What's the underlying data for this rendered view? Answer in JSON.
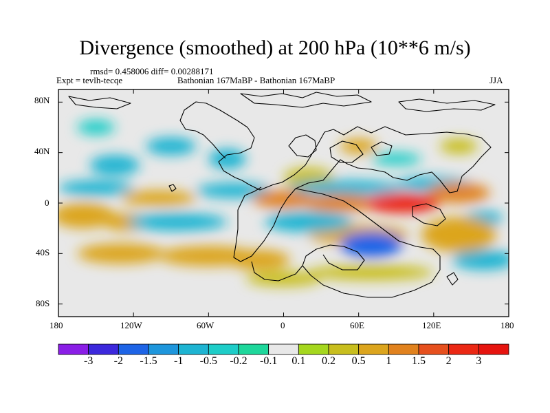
{
  "title": "Divergence (smoothed) at 200 hPa (10**6 m/s)",
  "stats": "rmsd= 0.458006 diff= 0.00288171",
  "expt": "Expt = tevlh-tecqe",
  "comparison": "Bathonian 167MaBP - Bathonian 167MaBP",
  "season": "JJA",
  "lat_ticks": [
    "80N",
    "40N",
    "0",
    "40S",
    "80S"
  ],
  "lon_ticks": [
    "180",
    "120W",
    "60W",
    "0",
    "60E",
    "120E",
    "180"
  ],
  "colorbar": {
    "labels": [
      "-3",
      "-2",
      "-1.5",
      "-1",
      "-0.5",
      "-0.2",
      "-0.1",
      "0.1",
      "0.2",
      "0.5",
      "1",
      "1.5",
      "2",
      "3"
    ],
    "colors": [
      "#8a1ee6",
      "#3c28dc",
      "#1e64e6",
      "#1e96dc",
      "#1eb4d2",
      "#1ecdc8",
      "#1ed79b",
      "#e8e8e8",
      "#a5d71e",
      "#c8be1e",
      "#dca51e",
      "#e1821e",
      "#e6501e",
      "#eb2814",
      "#e6140f"
    ]
  },
  "chart_data": {
    "type": "heatmap",
    "variable": "200 hPa divergence (smoothed) difference",
    "units": "10**6 m/s",
    "x_range": [
      -180,
      180
    ],
    "y_range": [
      -90,
      90
    ],
    "levels": [
      -3,
      -2,
      -1.5,
      -1,
      -0.5,
      -0.2,
      -0.1,
      0.1,
      0.2,
      0.5,
      1,
      1.5,
      2,
      3
    ],
    "features": [
      {
        "lon": 95,
        "lat": 0,
        "value": 2.5,
        "w": 30,
        "h": 8
      },
      {
        "lon": 45,
        "lat": 0,
        "value": 1.4,
        "w": 30,
        "h": 7
      },
      {
        "lon": 0,
        "lat": 3,
        "value": 1.2,
        "w": 25,
        "h": 7
      },
      {
        "lon": 140,
        "lat": 8,
        "value": 1.2,
        "w": 25,
        "h": 8
      },
      {
        "lon": -100,
        "lat": 4,
        "value": 0.9,
        "w": 30,
        "h": 6
      },
      {
        "lon": -160,
        "lat": -10,
        "value": 0.7,
        "w": 25,
        "h": 10
      },
      {
        "lon": -125,
        "lat": -15,
        "value": 0.9,
        "w": 20,
        "h": 7
      },
      {
        "lon": 60,
        "lat": -25,
        "value": 0.8,
        "w": 40,
        "h": 8
      },
      {
        "lon": 140,
        "lat": -25,
        "value": 0.9,
        "w": 30,
        "h": 14
      },
      {
        "lon": -60,
        "lat": -42,
        "value": 0.8,
        "w": 40,
        "h": 8
      },
      {
        "lon": -130,
        "lat": -40,
        "value": 0.7,
        "w": 35,
        "h": 8
      },
      {
        "lon": -20,
        "lat": -45,
        "value": 0.6,
        "w": 25,
        "h": 8
      },
      {
        "lon": 20,
        "lat": 20,
        "value": 0.4,
        "w": 20,
        "h": 8
      },
      {
        "lon": 60,
        "lat": 45,
        "value": 0.5,
        "w": 15,
        "h": 6
      },
      {
        "lon": 140,
        "lat": 45,
        "value": 0.4,
        "w": 15,
        "h": 6
      },
      {
        "lon": 70,
        "lat": -55,
        "value": 0.4,
        "w": 50,
        "h": 6
      },
      {
        "lon": 50,
        "lat": 12,
        "value": -1.0,
        "w": 45,
        "h": 6
      },
      {
        "lon": -40,
        "lat": 10,
        "value": -0.8,
        "w": 30,
        "h": 6
      },
      {
        "lon": -150,
        "lat": 12,
        "value": -0.7,
        "w": 30,
        "h": 6
      },
      {
        "lon": 120,
        "lat": 15,
        "value": -0.9,
        "w": 30,
        "h": 6
      },
      {
        "lon": 70,
        "lat": -33,
        "value": -1.8,
        "w": 25,
        "h": 10
      },
      {
        "lon": 20,
        "lat": -15,
        "value": -0.9,
        "w": 35,
        "h": 8
      },
      {
        "lon": -85,
        "lat": -15,
        "value": -1.0,
        "w": 40,
        "h": 7
      },
      {
        "lon": 160,
        "lat": -45,
        "value": -0.8,
        "w": 25,
        "h": 8
      },
      {
        "lon": -135,
        "lat": 30,
        "value": -0.8,
        "w": 20,
        "h": 8
      },
      {
        "lon": -45,
        "lat": 35,
        "value": -0.7,
        "w": 15,
        "h": 8
      },
      {
        "lon": -90,
        "lat": 45,
        "value": -0.6,
        "w": 20,
        "h": 7
      },
      {
        "lon": -150,
        "lat": 60,
        "value": -0.4,
        "w": 15,
        "h": 6
      },
      {
        "lon": 90,
        "lat": 35,
        "value": -0.5,
        "w": 20,
        "h": 5
      },
      {
        "lon": 160,
        "lat": -12,
        "value": -0.6,
        "w": 15,
        "h": 6
      },
      {
        "lon": 0,
        "lat": -60,
        "value": 0.3,
        "w": 30,
        "h": 6
      }
    ]
  }
}
